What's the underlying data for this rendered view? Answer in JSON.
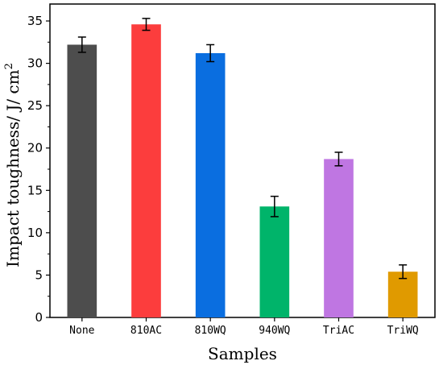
{
  "chart_data": {
    "type": "bar",
    "categories": [
      "None",
      "810AC",
      "810WQ",
      "940WQ",
      "TriAC",
      "TriWQ"
    ],
    "values": [
      32.2,
      34.6,
      31.2,
      13.1,
      18.7,
      5.4
    ],
    "errors": [
      0.9,
      0.7,
      1.0,
      1.2,
      0.8,
      0.8
    ],
    "colors": [
      "#4d4d4d",
      "#fc3d3d",
      "#0a6ee0",
      "#00b46a",
      "#bf76e2",
      "#e09a00"
    ],
    "xlabel": "Samples",
    "ylabel": "Impact  toughness/ J/ cm",
    "ylabel_superscript": "2",
    "ylim": [
      0,
      37
    ],
    "yticks": [
      0,
      5,
      10,
      15,
      20,
      25,
      30,
      35
    ],
    "grid": false,
    "legend": "none"
  }
}
